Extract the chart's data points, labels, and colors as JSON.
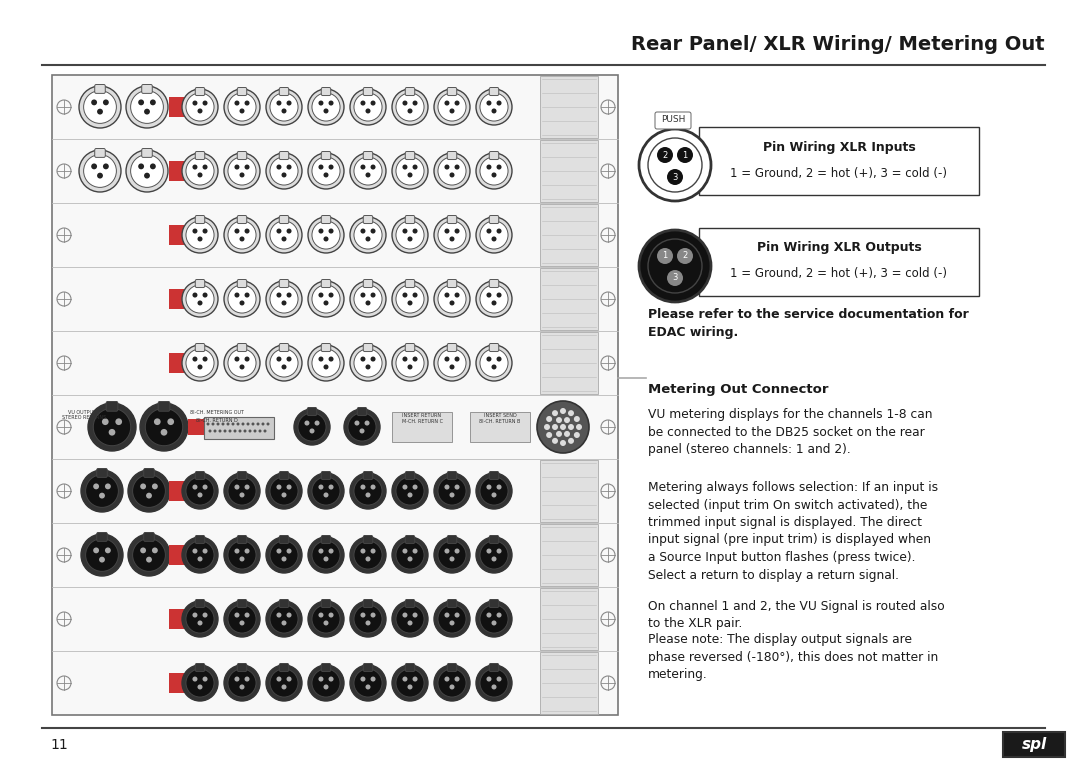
{
  "title": "Rear Panel/ XLR Wiring/ Metering Out",
  "bg_color": "#ffffff",
  "title_color": "#1a1a1a",
  "text_color": "#1a1a1a",
  "page_number": "11",
  "xlr_input_label": "Pin Wiring XLR Inputs",
  "xlr_input_sub": "1 = Ground, 2 = hot (+), 3 = cold (-)",
  "xlr_output_label": "Pin Wiring XLR Outputs",
  "xlr_output_sub": "1 = Ground, 2 = hot (+), 3 = cold (-)",
  "edac_text_l1": "Please refer to the service documentation for",
  "edac_text_l2": "EDAC wiring.",
  "metering_header": "Metering Out Connector",
  "metering_p1": "VU metering displays for the channels 1-8 can\nbe connected to the DB25 socket on the rear\npanel (stereo channels: 1 and 2).",
  "metering_p2": "Metering always follows selection: If an input is\nselected (input trim On switch activated), the\ntrimmed input signal is displayed. The direct\ninput signal (pre input trim) is displayed when\na Source Input button flashes (press twice).\nSelect a return to display a return signal.",
  "metering_p3": "On channel 1 and 2, the VU Signal is routed also\nto the XLR pair.",
  "metering_p4": "Please note: The display output signals are\nphase reversed (-180°), this does not matter in\nmetering."
}
